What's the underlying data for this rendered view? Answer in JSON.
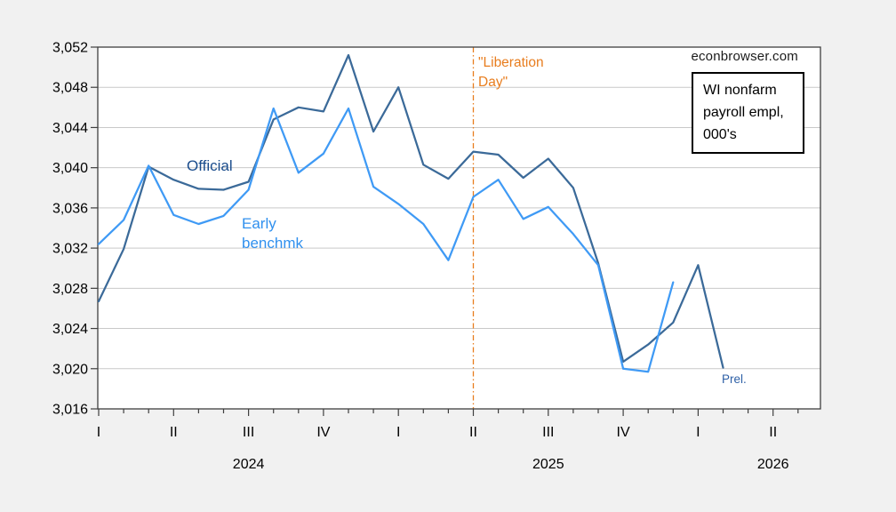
{
  "background": "#F1F1F1",
  "watermark": "econbrowser.com",
  "legend_box": {
    "lines": [
      "WI nonfarm",
      "payroll empl,",
      "000's"
    ]
  },
  "annotations": {
    "official": "Official",
    "early_benchmark": "Early benchmk",
    "liberation_day": "\"Liberation Day\"",
    "prel": "Prel."
  },
  "chart_data": {
    "type": "line",
    "title": "WI nonfarm payroll empl, 000's",
    "x_months": [
      "2024-01",
      "2024-02",
      "2024-03",
      "2024-04",
      "2024-05",
      "2024-06",
      "2024-07",
      "2024-08",
      "2024-09",
      "2024-10",
      "2024-11",
      "2024-12",
      "2025-01",
      "2025-02",
      "2025-03",
      "2025-04",
      "2025-05",
      "2025-06",
      "2025-07",
      "2025-08",
      "2025-09",
      "2025-10",
      "2025-11",
      "2025-12",
      "2026-01",
      "2026-02"
    ],
    "x_axis": {
      "quarter_tick_labels": [
        "I",
        "II",
        "III",
        "IV",
        "I",
        "II",
        "III",
        "IV",
        "I",
        "II"
      ],
      "quarter_tick_month_index": [
        0,
        3,
        6,
        9,
        12,
        15,
        18,
        21,
        24,
        27
      ],
      "year_labels": [
        {
          "text": "2024",
          "month_index": 6
        },
        {
          "text": "2025",
          "month_index": 18
        },
        {
          "text": "2026",
          "month_index": 27
        }
      ],
      "minor_tick_every_month": true,
      "n_minor_ticks": 29
    },
    "y_axis": {
      "min": 3016,
      "max": 3052,
      "tick_step": 4,
      "grid": true
    },
    "series": [
      {
        "name": "Official",
        "color": "#3B6A99",
        "values": [
          3026.7,
          3031.9,
          3040.1,
          3038.8,
          3037.9,
          3037.8,
          3038.6,
          3044.8,
          3046.0,
          3045.6,
          3051.2,
          3043.6,
          3048.0,
          3040.3,
          3038.9,
          3041.6,
          3041.3,
          3039.0,
          3040.9,
          3038.0,
          3030.5,
          3020.7,
          3022.4,
          3024.6,
          3030.3,
          3020.1
        ]
      },
      {
        "name": "Early benchmk",
        "color": "#3F9AF5",
        "values": [
          3032.4,
          3034.8,
          3040.2,
          3035.3,
          3034.4,
          3035.2,
          3037.8,
          3045.9,
          3039.5,
          3041.4,
          3045.9,
          3038.1,
          3036.4,
          3034.4,
          3030.8,
          3037.1,
          3038.8,
          3034.9,
          3036.1,
          3033.4,
          3030.3,
          3020.0,
          3019.7,
          3028.6
        ]
      }
    ],
    "vline": {
      "label": "\"Liberation Day\"",
      "month": "2025-04",
      "month_index": 15,
      "color": "#E87D1E",
      "style": "dash-dot"
    },
    "colors": {
      "grid": "#C9C9C9",
      "frame": "#3F3F3F",
      "plot_background": "#FFFFFF",
      "page_background": "#F1F1F1"
    }
  }
}
